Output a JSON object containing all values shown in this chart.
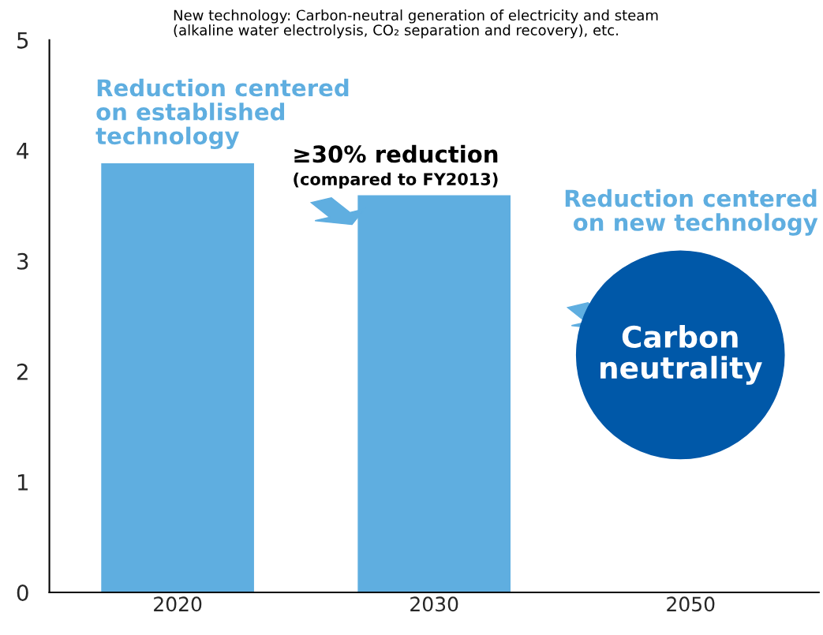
{
  "chart_data": {
    "type": "bar",
    "categories": [
      "2020",
      "2030",
      "2050"
    ],
    "values": [
      3.89,
      3.6,
      null
    ],
    "color": "#5faee0",
    "ylim": [
      0,
      5
    ],
    "yticks": [
      0,
      1,
      2,
      3,
      4,
      5
    ],
    "grid": false,
    "legend": false,
    "annotations": [
      "New technology: Carbon-neutral generation of electricity and steam\n(alkaline water electrolysis, CO₂ separation and recovery), etc.",
      "Reduction centered\non established\ntechnology",
      "≥30% reduction",
      "(compared to FY2013)",
      "Reduction centered\non new technology",
      "Carbon\nneutrality"
    ]
  }
}
